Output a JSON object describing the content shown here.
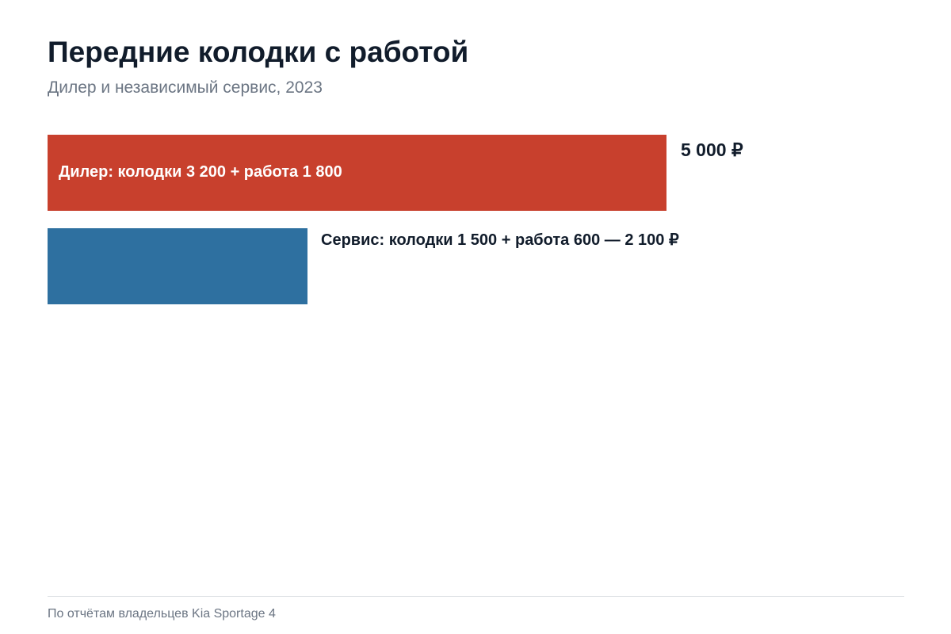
{
  "chart_data": {
    "type": "bar",
    "orientation": "horizontal",
    "title": "Передние колодки с работой",
    "subtitle": "Дилер и независимый сервис, 2023",
    "categories": [
      "Дилер",
      "Сервис"
    ],
    "values": [
      5000,
      2100
    ],
    "colors": [
      "#c8402d",
      "#2e70a0"
    ],
    "bars": [
      {
        "label": "Дилер: колодки 3 200 + работа 1 800",
        "total_label": "5 000 ₽",
        "value": 5000,
        "parts": [
          3200,
          1800
        ]
      },
      {
        "label": "Сервис: колодки 1 500 + работа 600 — 2 100 ₽",
        "total_label": "",
        "value": 2100,
        "parts": [
          1500,
          600
        ]
      }
    ],
    "xlim": [
      0,
      5000
    ],
    "grid": false,
    "legend": "none"
  },
  "footer": {
    "source": "По отчётам владельцев Kia Sportage 4"
  }
}
